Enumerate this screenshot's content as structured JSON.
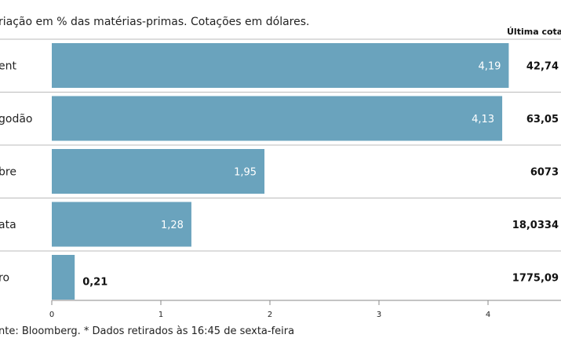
{
  "subtitle": "riação em % das matérias-primas. Cotações em dólares.",
  "quote_header": "Última cotaç",
  "footer": "nte: Bloomberg.  * Dados retirados às 16:45 de sexta-feira",
  "colors": {
    "bar": "#6aa3bd",
    "grid": "#cccccc",
    "separator": "#bbbbbb"
  },
  "chart_data": {
    "type": "bar",
    "orientation": "horizontal",
    "categories": [
      "ent",
      "godão",
      "bre",
      "ata",
      "ro"
    ],
    "values": [
      4.19,
      4.13,
      1.95,
      1.28,
      0.21
    ],
    "value_labels": [
      "4,19",
      "4,13",
      "1,95",
      "1,28",
      "0,21"
    ],
    "last_quotes": [
      "42,74",
      "63,05",
      "6073",
      "18,0334",
      "1775,09"
    ],
    "xlim": [
      0,
      4.6
    ],
    "xticks": [
      0,
      1,
      2,
      3,
      4
    ],
    "xtick_labels": [
      "0",
      "1",
      "2",
      "3",
      "4"
    ],
    "grid": false,
    "legend": "none"
  }
}
